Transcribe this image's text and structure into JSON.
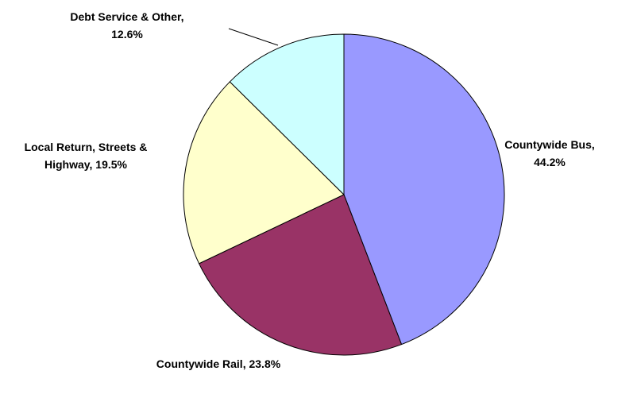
{
  "chart_data": {
    "type": "pie",
    "categories": [
      "Countywide Bus,",
      "Countywide Rail,",
      "Local Return, Streets & Highway,",
      "Debt Service & Other,"
    ],
    "values": [
      44.2,
      23.8,
      19.5,
      12.6
    ],
    "value_labels": [
      "44.2%",
      "23.8%",
      "19.5%",
      "12.6%"
    ],
    "colors": [
      "#9999ff",
      "#993366",
      "#ffffcc",
      "#ccffff"
    ]
  }
}
